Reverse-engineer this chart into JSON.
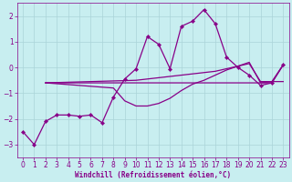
{
  "xlabel": "Windchill (Refroidissement éolien,°C)",
  "bg_color": "#c8eef0",
  "grid_color": "#aad4d8",
  "line_color": "#880088",
  "xlim": [
    -0.5,
    23.5
  ],
  "ylim": [
    -3.5,
    2.5
  ],
  "yticks": [
    -3,
    -2,
    -1,
    0,
    1,
    2
  ],
  "xticks": [
    0,
    1,
    2,
    3,
    4,
    5,
    6,
    7,
    8,
    9,
    10,
    11,
    12,
    13,
    14,
    15,
    16,
    17,
    18,
    19,
    20,
    21,
    22,
    23
  ],
  "series1_x": [
    0,
    1,
    2,
    3,
    4,
    5,
    6,
    7,
    8,
    9,
    10,
    11,
    12,
    13,
    14,
    15,
    16,
    17,
    18,
    19,
    20,
    21,
    22,
    23
  ],
  "series1_y": [
    -2.5,
    -3.0,
    -2.1,
    -1.85,
    -1.85,
    -1.9,
    -1.85,
    -2.15,
    -1.15,
    -0.45,
    -0.05,
    1.2,
    0.9,
    -0.05,
    1.6,
    1.8,
    2.25,
    1.7,
    0.4,
    0.0,
    -0.3,
    -0.7,
    -0.6,
    0.1
  ],
  "series2_x": [
    2,
    9,
    10,
    11,
    12,
    13,
    14,
    15,
    16,
    17,
    18,
    19,
    20,
    21,
    22,
    23
  ],
  "series2_y": [
    -0.6,
    -0.6,
    -0.6,
    -0.6,
    -0.6,
    -0.6,
    -0.6,
    -0.6,
    -0.6,
    -0.6,
    -0.6,
    -0.6,
    -0.6,
    -0.6,
    -0.6,
    0.1
  ],
  "series3_x": [
    2,
    10,
    11,
    12,
    13,
    14,
    15,
    16,
    17,
    18,
    19,
    20,
    21,
    22,
    23
  ],
  "series3_y": [
    -0.6,
    -0.5,
    -0.45,
    -0.4,
    -0.35,
    -0.3,
    -0.25,
    -0.2,
    -0.15,
    -0.05,
    0.05,
    0.15,
    -0.55,
    -0.55,
    -0.55
  ],
  "series4_x": [
    2,
    8,
    9,
    10,
    11,
    12,
    13,
    14,
    15,
    16,
    17,
    18,
    19,
    20,
    21,
    22,
    23
  ],
  "series4_y": [
    -0.6,
    -0.8,
    -1.3,
    -1.5,
    -1.5,
    -1.4,
    -1.2,
    -0.9,
    -0.65,
    -0.5,
    -0.3,
    -0.1,
    0.05,
    0.2,
    -0.6,
    -0.55,
    0.1
  ]
}
